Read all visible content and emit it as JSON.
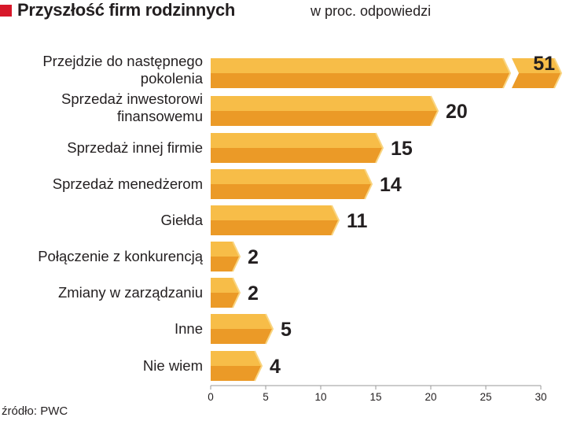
{
  "title": "Przyszłość firm rodzinnych",
  "subtitle": "w proc. odpowiedzi",
  "source": "źródło: PWC",
  "colors": {
    "accent": "#d7182a",
    "bar_top": "#f7bd48",
    "bar_bottom": "#eb9a27",
    "bar_cap": "#f9d582",
    "axis": "#9a9a9a",
    "text": "#231f20"
  },
  "chart_data": {
    "type": "bar",
    "orientation": "horizontal",
    "title": "Przyszłość firm rodzinnych",
    "subtitle": "w proc. odpowiedzi",
    "categories": [
      [
        "Przejdzie do następnego",
        "pokolenia"
      ],
      [
        "Sprzedaż inwestorowi",
        "finansowemu"
      ],
      [
        "Sprzedaż innej firmie"
      ],
      [
        "Sprzedaż menedżerom"
      ],
      [
        "Giełda"
      ],
      [
        "Połączenie z konkurencją"
      ],
      [
        "Zmiany w zarządzaniu"
      ],
      [
        "Inne"
      ],
      [
        "Nie wiem"
      ]
    ],
    "values": [
      51,
      20,
      15,
      14,
      11,
      2,
      2,
      5,
      4
    ],
    "value_labels": [
      "51",
      "20",
      "15",
      "14",
      "11",
      "2",
      "2",
      "5",
      "4"
    ],
    "xlim": [
      0,
      30
    ],
    "xticks": [
      0,
      5,
      10,
      15,
      20,
      25,
      30
    ],
    "xtick_labels": [
      "0",
      "5",
      "10",
      "15",
      "20",
      "25",
      "30"
    ],
    "axis_break_at": 26,
    "xlabel": "",
    "ylabel": ""
  }
}
